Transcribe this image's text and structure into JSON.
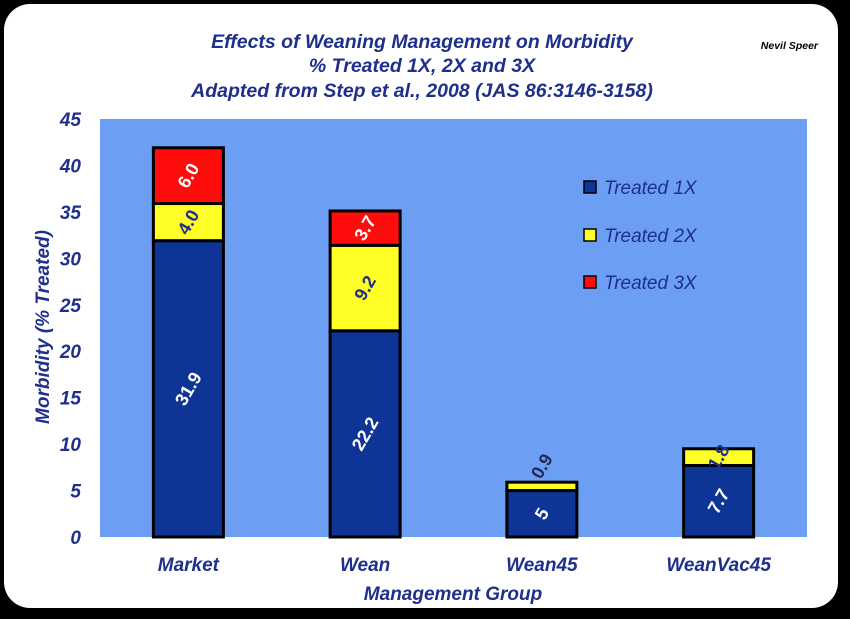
{
  "author": "Nevil Speer",
  "chart_data": {
    "type": "bar",
    "stacked": true,
    "title_lines": [
      "Effects of Weaning Management on Morbidity",
      "% Treated 1X, 2X and 3X",
      "Adapted from Step et al., 2008 (JAS 86:3146-3158)"
    ],
    "xlabel": "Management Group",
    "ylabel": "Morbidity (% Treated)",
    "categories": [
      "Market",
      "Wean",
      "Wean45",
      "WeanVac45"
    ],
    "ylim": [
      0,
      45
    ],
    "yticks": [
      "0",
      "5",
      "10",
      "15",
      "20",
      "25",
      "30",
      "35",
      "40",
      "45"
    ],
    "legend_position": "right",
    "grid": false,
    "series": [
      {
        "name": "Treated 1X",
        "color": "#0e3596",
        "values": [
          31.9,
          22.2,
          5,
          7.7
        ],
        "labels": [
          "31.9",
          "22.2",
          "5",
          "7.7"
        ]
      },
      {
        "name": "Treated 2X",
        "color": "#ffff26",
        "values": [
          4.0,
          9.2,
          0.9,
          1.8
        ],
        "labels": [
          "4.0",
          "9.2",
          "0.9",
          "1.8"
        ]
      },
      {
        "name": "Treated 3X",
        "color": "#ff0d0d",
        "values": [
          6.0,
          3.7,
          0,
          0
        ],
        "labels": [
          "6.0",
          "3.7",
          "",
          ""
        ]
      }
    ],
    "plot_background": "#6c9ef4"
  }
}
